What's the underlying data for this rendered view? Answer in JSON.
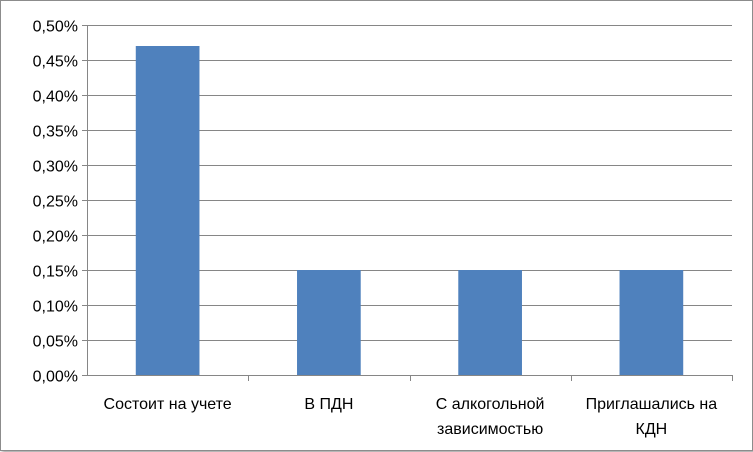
{
  "chart_data": {
    "type": "bar",
    "categories": [
      [
        "Состоит на учете"
      ],
      [
        "В ПДН"
      ],
      [
        "С алкогольной",
        "зависимостью"
      ],
      [
        "Приглашались на",
        "КДН"
      ]
    ],
    "values": [
      0.0047,
      0.0015,
      0.0015,
      0.0015
    ],
    "y_ticks": [
      "0,00%",
      "0,05%",
      "0,10%",
      "0,15%",
      "0,20%",
      "0,25%",
      "0,30%",
      "0,35%",
      "0,40%",
      "0,45%",
      "0,50%"
    ],
    "ylim": [
      0,
      0.005
    ],
    "grid": true,
    "legend": "none",
    "bar_color": "#4f81bd",
    "grid_color": "#868686"
  }
}
